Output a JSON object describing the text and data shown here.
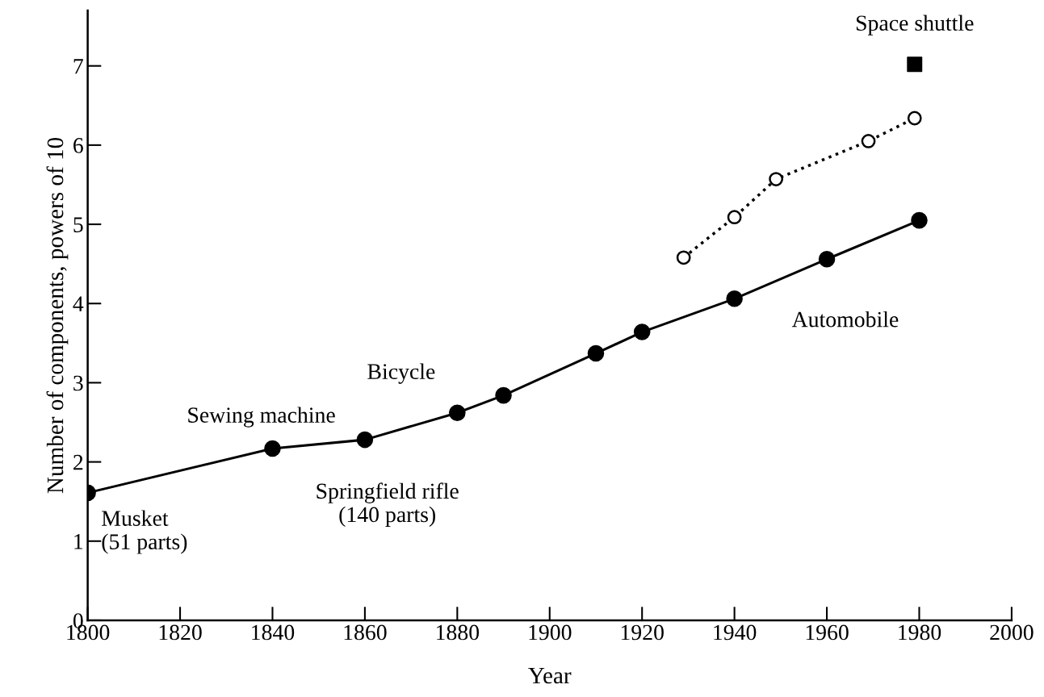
{
  "chart_data": {
    "type": "line",
    "xlabel": "Year",
    "ylabel": "Number of components, powers of 10",
    "xlim": [
      1800,
      2000
    ],
    "xticks": [
      1800,
      1820,
      1840,
      1860,
      1880,
      1900,
      1920,
      1940,
      1960,
      1980,
      2000
    ],
    "ylim": [
      0,
      7.7
    ],
    "yticks": [
      0,
      1,
      2,
      3,
      4,
      5,
      6,
      7
    ],
    "grid": false,
    "legend": false,
    "series": [
      {
        "color": "#000000",
        "marker": "circle",
        "line_style": "solid",
        "x": [
          1800,
          1840,
          1860,
          1880,
          1890,
          1910,
          1920,
          1940,
          1960,
          1980
        ],
        "values": [
          1.61,
          2.17,
          2.28,
          2.62,
          2.84,
          3.37,
          3.64,
          4.06,
          4.56,
          5.05
        ]
      },
      {
        "type": "line",
        "color": "#000000",
        "marker": "circle",
        "line_style": "dotted",
        "x": [
          1929,
          1940,
          1949,
          1969,
          1979
        ],
        "values": [
          4.58,
          5.09,
          5.57,
          6.05,
          6.34
        ]
      },
      {
        "type": "scatter",
        "color": "#000000",
        "marker": "square",
        "x": [
          1979
        ],
        "values": [
          7.02
        ]
      }
    ],
    "annotations": [
      {
        "text": "Musket\n(51 parts)",
        "x": 1800,
        "y": 1.61
      },
      {
        "text": "Sewing machine",
        "x": 1840,
        "y": 2.17
      },
      {
        "text": "Springfield rifle\n(140 parts)",
        "x": 1860,
        "y": 2.28
      },
      {
        "text": "Bicycle",
        "x": 1880,
        "y": 2.62
      },
      "Automobile",
      {
        "text": "Space shuttle",
        "x": 1979,
        "y": 7.02
      }
    ]
  }
}
